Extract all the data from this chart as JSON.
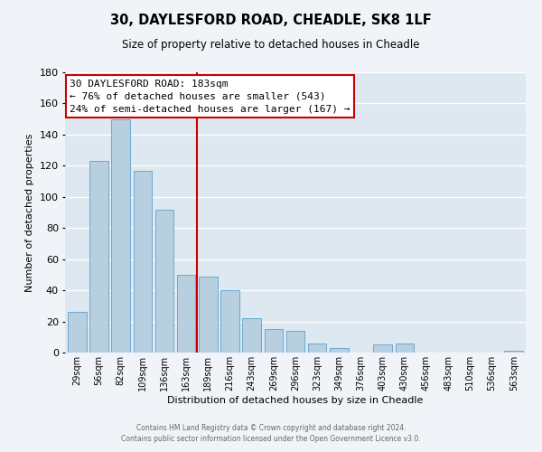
{
  "title": "30, DAYLESFORD ROAD, CHEADLE, SK8 1LF",
  "subtitle": "Size of property relative to detached houses in Cheadle",
  "xlabel": "Distribution of detached houses by size in Cheadle",
  "ylabel": "Number of detached properties",
  "bar_color": "#b8cfe0",
  "bar_edge_color": "#6aaad4",
  "background_color": "#dde8f0",
  "grid_color": "#ffffff",
  "vline_color": "#cc0000",
  "annotation_title": "30 DAYLESFORD ROAD: 183sqm",
  "annotation_line1": "← 76% of detached houses are smaller (543)",
  "annotation_line2": "24% of semi-detached houses are larger (167) →",
  "annotation_box_color": "#ffffff",
  "annotation_box_edge": "#cc0000",
  "categories": [
    "29sqm",
    "56sqm",
    "82sqm",
    "109sqm",
    "136sqm",
    "163sqm",
    "189sqm",
    "216sqm",
    "243sqm",
    "269sqm",
    "296sqm",
    "323sqm",
    "349sqm",
    "376sqm",
    "403sqm",
    "430sqm",
    "456sqm",
    "483sqm",
    "510sqm",
    "536sqm",
    "563sqm"
  ],
  "values": [
    26,
    123,
    150,
    117,
    92,
    50,
    49,
    40,
    22,
    15,
    14,
    6,
    3,
    0,
    5,
    6,
    0,
    0,
    0,
    0,
    1
  ],
  "ylim": [
    0,
    180
  ],
  "yticks": [
    0,
    20,
    40,
    60,
    80,
    100,
    120,
    140,
    160,
    180
  ],
  "vline_index": 6,
  "footer_line1": "Contains HM Land Registry data © Crown copyright and database right 2024.",
  "footer_line2": "Contains public sector information licensed under the Open Government Licence v3.0."
}
